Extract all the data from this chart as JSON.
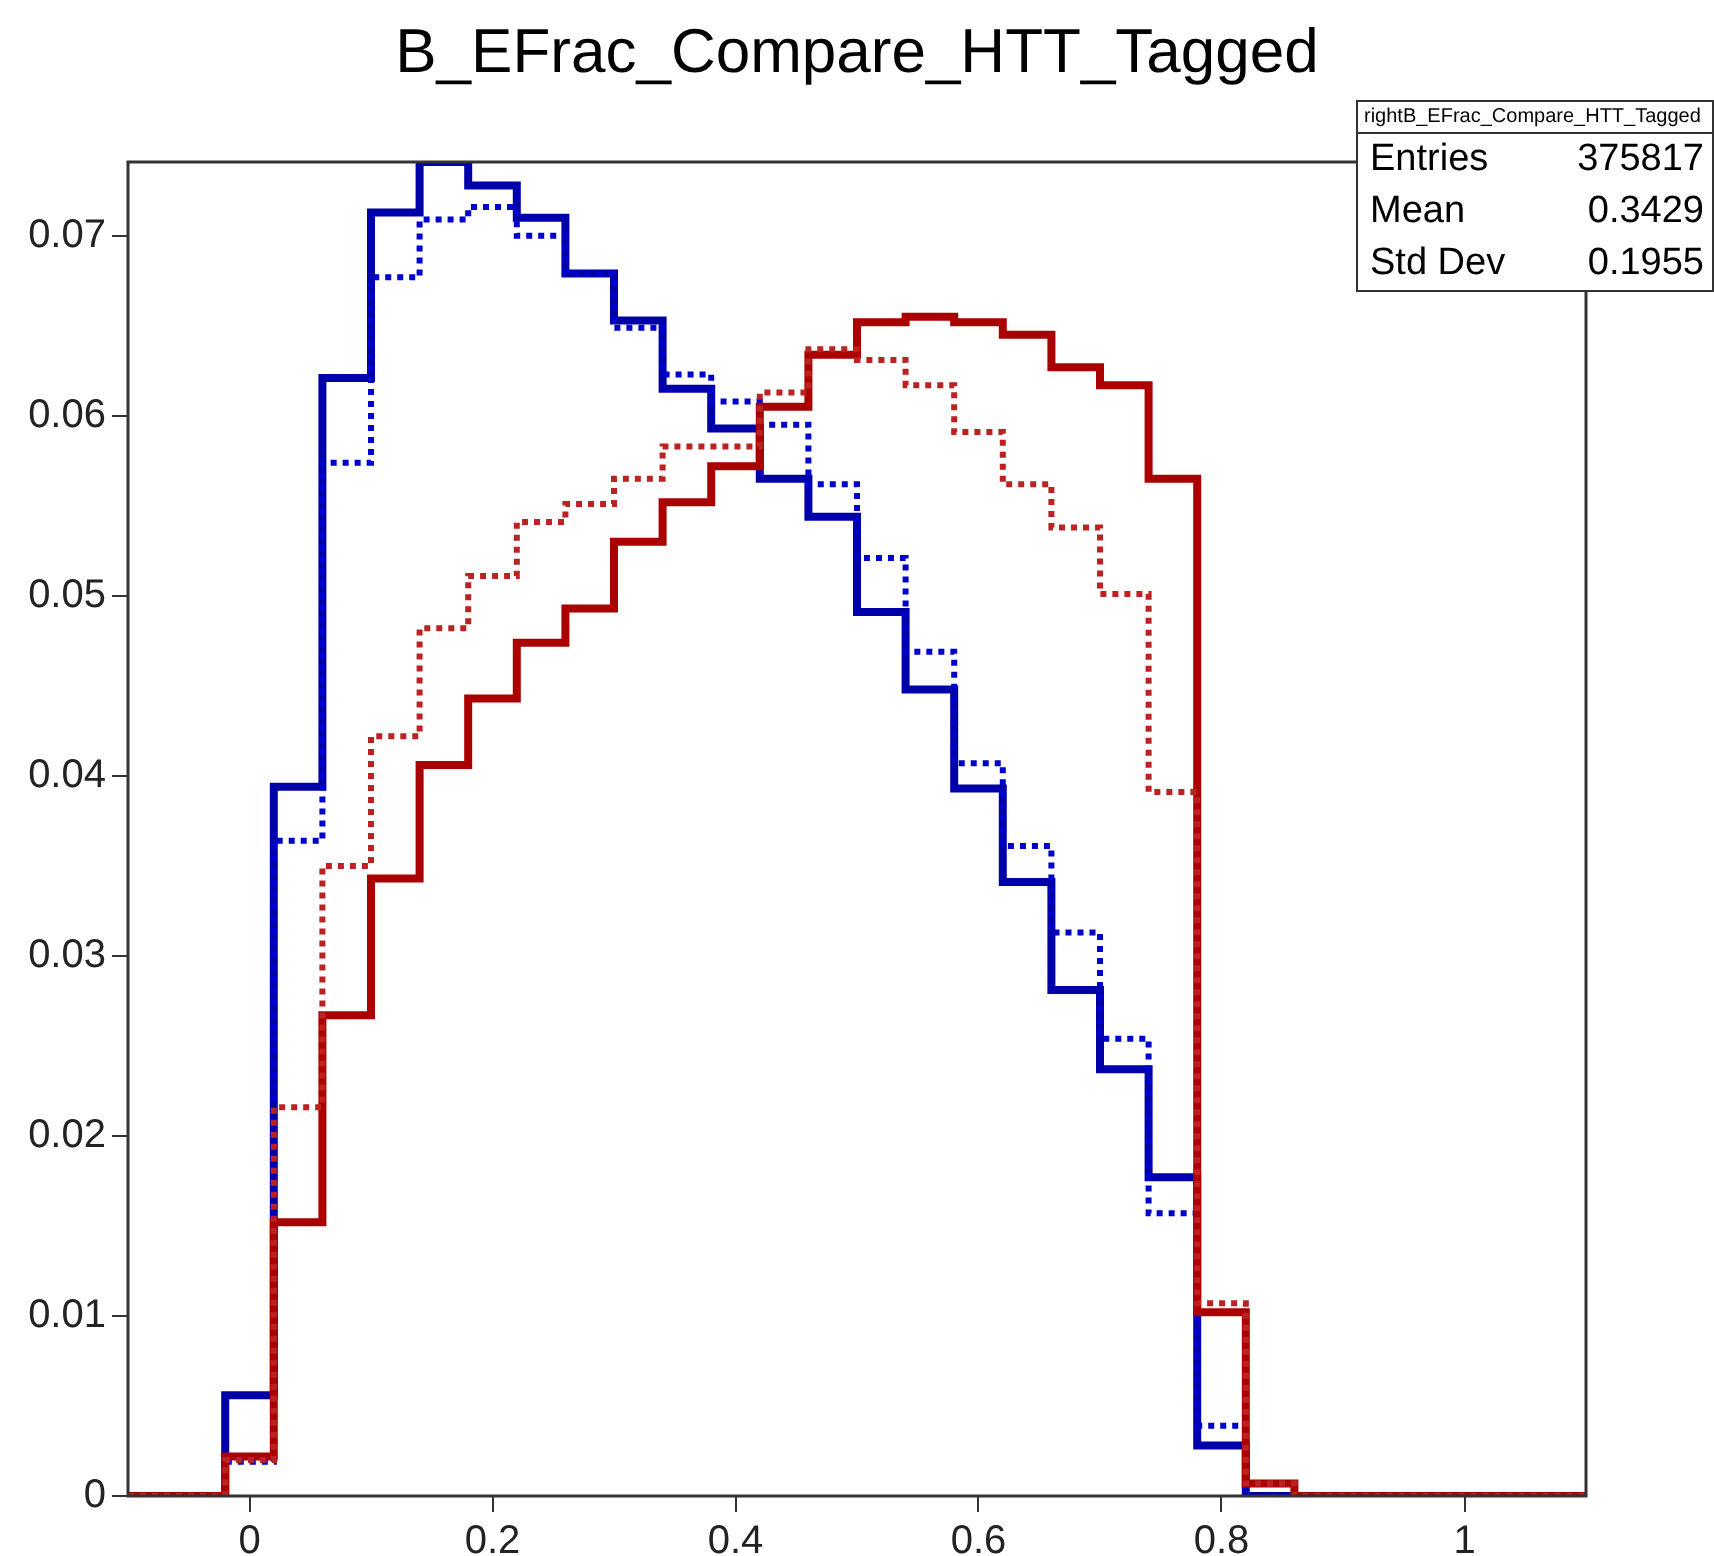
{
  "chart_data": {
    "type": "histogram",
    "title": "B_EFrac_Compare_HTT_Tagged",
    "bins": [
      -0.1,
      -0.06,
      -0.02,
      0.02,
      0.06,
      0.1,
      0.14,
      0.18,
      0.22,
      0.26,
      0.3,
      0.34,
      0.38,
      0.42,
      0.46,
      0.5,
      0.54,
      0.58,
      0.62,
      0.66,
      0.7,
      0.74,
      0.78,
      0.82,
      0.86,
      0.9,
      0.94,
      0.98,
      1.02,
      1.06,
      1.1
    ],
    "series": [
      {
        "color": "#0000aa",
        "line_style": "solid",
        "values": [
          0,
          0,
          0.0056,
          0.0394,
          0.0621,
          0.0713,
          0.0741,
          0.0728,
          0.071,
          0.0679,
          0.0653,
          0.0615,
          0.0593,
          0.0565,
          0.0544,
          0.0491,
          0.0448,
          0.0393,
          0.0341,
          0.0281,
          0.0237,
          0.0177,
          0.0028,
          0,
          0,
          0,
          0,
          0,
          0,
          0
        ]
      },
      {
        "color": "#0000cc",
        "line_style": "dotted",
        "values": [
          0,
          0,
          0.0019,
          0.0364,
          0.0574,
          0.0677,
          0.0709,
          0.0716,
          0.07,
          0.0679,
          0.0649,
          0.0623,
          0.0608,
          0.0595,
          0.0562,
          0.0521,
          0.0469,
          0.0407,
          0.0361,
          0.0313,
          0.0254,
          0.0157,
          0.0039,
          0,
          0,
          0,
          0,
          0,
          0,
          0
        ]
      },
      {
        "color": "#aa0000",
        "line_style": "solid",
        "values": [
          0,
          0,
          0.0022,
          0.0152,
          0.0267,
          0.0343,
          0.0406,
          0.0443,
          0.0474,
          0.0493,
          0.053,
          0.0552,
          0.0572,
          0.0605,
          0.0634,
          0.0652,
          0.0655,
          0.0652,
          0.0645,
          0.0627,
          0.0617,
          0.0565,
          0.0102,
          0.0007,
          0,
          0,
          0,
          0,
          0,
          0
        ]
      },
      {
        "color": "#bb2222",
        "line_style": "dotted",
        "values": [
          0,
          0,
          0.002,
          0.0216,
          0.035,
          0.0422,
          0.0482,
          0.0511,
          0.0541,
          0.0551,
          0.0565,
          0.0583,
          0.0583,
          0.0613,
          0.0637,
          0.0631,
          0.0617,
          0.0591,
          0.0562,
          0.0538,
          0.0501,
          0.0391,
          0.0107,
          0.0007,
          0,
          0,
          0,
          0,
          0,
          0
        ]
      }
    ],
    "xlim": [
      -0.1,
      1.1
    ],
    "xticks": [
      0,
      0.2,
      0.4,
      0.6,
      0.8,
      1
    ],
    "ylim": [
      0,
      0.0741
    ],
    "yticks": [
      0,
      0.01,
      0.02,
      0.03,
      0.04,
      0.05,
      0.06,
      0.07
    ],
    "grid": false,
    "legend": false,
    "annotations": [
      "rightB_EFrac_Compare_HTT_Tagged",
      "Entries",
      "375817",
      "Mean",
      "0.3429",
      "Std Dev",
      "0.1955"
    ]
  }
}
